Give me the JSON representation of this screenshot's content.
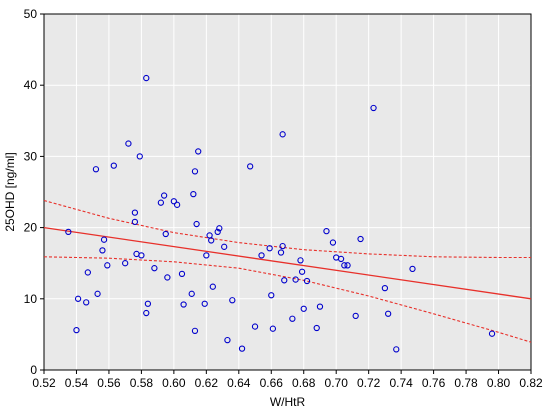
{
  "chart_data": {
    "type": "scatter",
    "xlabel": "W/HtR",
    "ylabel": "25OHD [ng/ml]",
    "xlim": [
      0.52,
      0.82
    ],
    "ylim": [
      0,
      50
    ],
    "x_ticks": [
      "0.52",
      "0.54",
      "0.56",
      "0.58",
      "0.60",
      "0.62",
      "0.64",
      "0.66",
      "0.68",
      "0.70",
      "0.72",
      "0.74",
      "0.76",
      "0.78",
      "0.80",
      "0.82"
    ],
    "y_ticks": [
      "0",
      "10",
      "20",
      "30",
      "40",
      "50"
    ],
    "grid": true,
    "colors": {
      "background": "#e9e9e9",
      "grid": "#ffffff",
      "points": "#0000cc",
      "fit_line": "#e8302a",
      "confidence_band": "#e8302a"
    },
    "points": [
      {
        "x": 0.535,
        "y": 19.4
      },
      {
        "x": 0.54,
        "y": 5.6
      },
      {
        "x": 0.541,
        "y": 10.0
      },
      {
        "x": 0.546,
        "y": 9.5
      },
      {
        "x": 0.547,
        "y": 13.7
      },
      {
        "x": 0.552,
        "y": 28.2
      },
      {
        "x": 0.553,
        "y": 10.7
      },
      {
        "x": 0.556,
        "y": 16.8
      },
      {
        "x": 0.557,
        "y": 18.3
      },
      {
        "x": 0.559,
        "y": 14.7
      },
      {
        "x": 0.563,
        "y": 28.7
      },
      {
        "x": 0.57,
        "y": 15.0
      },
      {
        "x": 0.572,
        "y": 31.8
      },
      {
        "x": 0.576,
        "y": 20.8
      },
      {
        "x": 0.576,
        "y": 22.1
      },
      {
        "x": 0.577,
        "y": 16.3
      },
      {
        "x": 0.579,
        "y": 30.0
      },
      {
        "x": 0.58,
        "y": 16.1
      },
      {
        "x": 0.583,
        "y": 41.0
      },
      {
        "x": 0.583,
        "y": 8.0
      },
      {
        "x": 0.584,
        "y": 9.3
      },
      {
        "x": 0.588,
        "y": 14.3
      },
      {
        "x": 0.592,
        "y": 23.5
      },
      {
        "x": 0.594,
        "y": 24.5
      },
      {
        "x": 0.595,
        "y": 19.1
      },
      {
        "x": 0.596,
        "y": 13.0
      },
      {
        "x": 0.6,
        "y": 23.7
      },
      {
        "x": 0.602,
        "y": 23.2
      },
      {
        "x": 0.605,
        "y": 13.5
      },
      {
        "x": 0.606,
        "y": 9.2
      },
      {
        "x": 0.611,
        "y": 10.7
      },
      {
        "x": 0.612,
        "y": 24.7
      },
      {
        "x": 0.613,
        "y": 5.5
      },
      {
        "x": 0.613,
        "y": 27.9
      },
      {
        "x": 0.614,
        "y": 20.5
      },
      {
        "x": 0.615,
        "y": 30.7
      },
      {
        "x": 0.619,
        "y": 9.3
      },
      {
        "x": 0.62,
        "y": 16.1
      },
      {
        "x": 0.622,
        "y": 18.9
      },
      {
        "x": 0.623,
        "y": 18.2
      },
      {
        "x": 0.624,
        "y": 11.7
      },
      {
        "x": 0.627,
        "y": 19.4
      },
      {
        "x": 0.628,
        "y": 19.9
      },
      {
        "x": 0.631,
        "y": 17.3
      },
      {
        "x": 0.633,
        "y": 4.2
      },
      {
        "x": 0.636,
        "y": 9.8
      },
      {
        "x": 0.642,
        "y": 3.0
      },
      {
        "x": 0.647,
        "y": 28.6
      },
      {
        "x": 0.65,
        "y": 6.1
      },
      {
        "x": 0.654,
        "y": 16.1
      },
      {
        "x": 0.659,
        "y": 17.1
      },
      {
        "x": 0.66,
        "y": 10.5
      },
      {
        "x": 0.661,
        "y": 5.8
      },
      {
        "x": 0.666,
        "y": 16.5
      },
      {
        "x": 0.667,
        "y": 17.4
      },
      {
        "x": 0.667,
        "y": 33.1
      },
      {
        "x": 0.668,
        "y": 12.6
      },
      {
        "x": 0.673,
        "y": 7.2
      },
      {
        "x": 0.675,
        "y": 12.7
      },
      {
        "x": 0.678,
        "y": 15.4
      },
      {
        "x": 0.679,
        "y": 13.8
      },
      {
        "x": 0.68,
        "y": 8.6
      },
      {
        "x": 0.682,
        "y": 12.5
      },
      {
        "x": 0.688,
        "y": 5.9
      },
      {
        "x": 0.69,
        "y": 8.9
      },
      {
        "x": 0.694,
        "y": 19.5
      },
      {
        "x": 0.698,
        "y": 17.9
      },
      {
        "x": 0.7,
        "y": 15.8
      },
      {
        "x": 0.703,
        "y": 15.6
      },
      {
        "x": 0.705,
        "y": 14.7
      },
      {
        "x": 0.707,
        "y": 14.7
      },
      {
        "x": 0.712,
        "y": 7.6
      },
      {
        "x": 0.715,
        "y": 18.4
      },
      {
        "x": 0.723,
        "y": 36.8
      },
      {
        "x": 0.73,
        "y": 11.5
      },
      {
        "x": 0.732,
        "y": 7.9
      },
      {
        "x": 0.737,
        "y": 2.9
      },
      {
        "x": 0.747,
        "y": 14.2
      },
      {
        "x": 0.796,
        "y": 5.1
      }
    ],
    "fit_line": [
      {
        "x": 0.52,
        "y": 20.0
      },
      {
        "x": 0.82,
        "y": 10.0
      }
    ],
    "confidence_upper": [
      {
        "x": 0.52,
        "y": 23.8
      },
      {
        "x": 0.56,
        "y": 21.3
      },
      {
        "x": 0.6,
        "y": 19.3
      },
      {
        "x": 0.64,
        "y": 17.9
      },
      {
        "x": 0.68,
        "y": 16.9
      },
      {
        "x": 0.72,
        "y": 16.3
      },
      {
        "x": 0.76,
        "y": 15.9
      },
      {
        "x": 0.8,
        "y": 15.8
      },
      {
        "x": 0.82,
        "y": 15.8
      }
    ],
    "confidence_lower": [
      {
        "x": 0.52,
        "y": 15.9
      },
      {
        "x": 0.56,
        "y": 15.7
      },
      {
        "x": 0.6,
        "y": 15.2
      },
      {
        "x": 0.64,
        "y": 14.3
      },
      {
        "x": 0.68,
        "y": 12.6
      },
      {
        "x": 0.72,
        "y": 10.4
      },
      {
        "x": 0.76,
        "y": 7.9
      },
      {
        "x": 0.8,
        "y": 5.3
      },
      {
        "x": 0.82,
        "y": 3.9
      }
    ]
  }
}
